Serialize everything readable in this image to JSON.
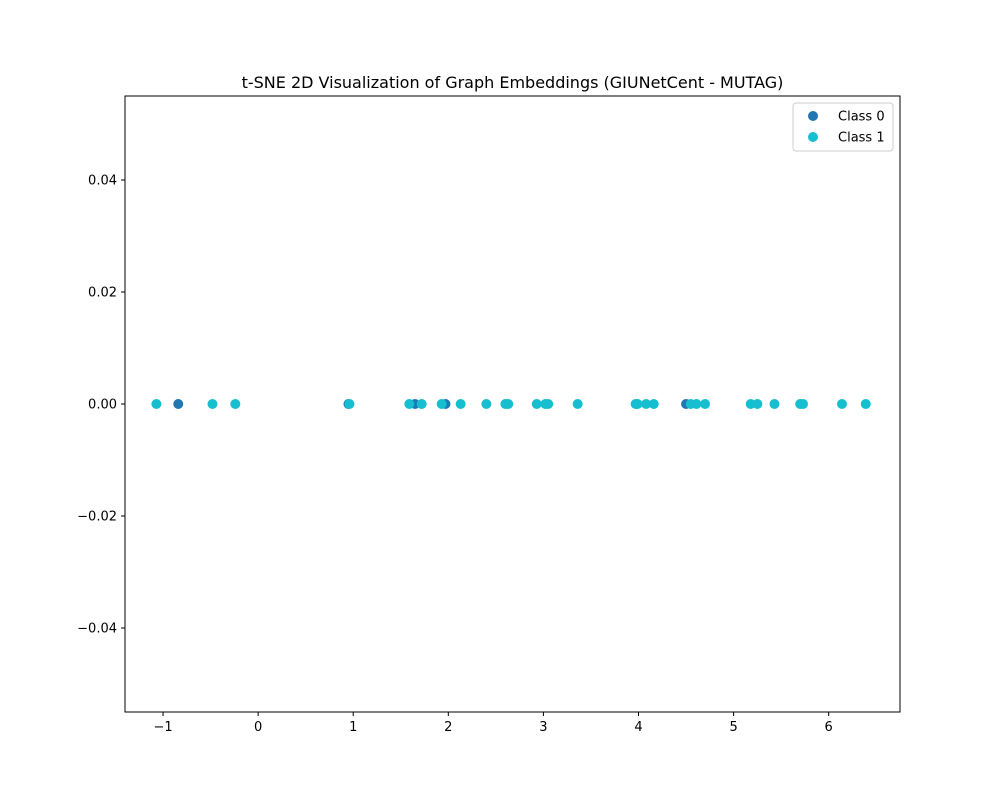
{
  "chart_data": {
    "type": "scatter",
    "title": "t-SNE 2D Visualization of Graph Embeddings (GIUNetCent - MUTAG)",
    "xlabel": "",
    "ylabel": "",
    "xlim": [
      -1.4,
      6.75
    ],
    "ylim": [
      -0.055,
      0.055
    ],
    "x_ticks": [
      -1,
      0,
      1,
      2,
      3,
      4,
      5,
      6
    ],
    "x_tick_labels": [
      "−1",
      "0",
      "1",
      "2",
      "3",
      "4",
      "5",
      "6"
    ],
    "y_ticks": [
      0.04,
      0.02,
      0.0,
      -0.02,
      -0.04
    ],
    "y_tick_labels": [
      "0.04",
      "0.02",
      "0.00",
      "−0.02",
      "−0.04"
    ],
    "grid": false,
    "legend_position": "top-right",
    "series": [
      {
        "name": "Class 0",
        "color": "#1f77b4",
        "points": [
          [
            -0.84,
            0
          ],
          [
            0.95,
            0
          ],
          [
            1.65,
            0
          ],
          [
            1.97,
            0
          ],
          [
            4.5,
            0
          ]
        ]
      },
      {
        "name": "Class 1",
        "color": "#17becf",
        "points": [
          [
            -1.07,
            0
          ],
          [
            -0.48,
            0
          ],
          [
            -0.24,
            0
          ],
          [
            0.96,
            0
          ],
          [
            1.59,
            0
          ],
          [
            1.72,
            0
          ],
          [
            1.93,
            0
          ],
          [
            2.13,
            0
          ],
          [
            2.4,
            0
          ],
          [
            2.6,
            0
          ],
          [
            2.63,
            0
          ],
          [
            2.93,
            0
          ],
          [
            3.02,
            0
          ],
          [
            3.05,
            0
          ],
          [
            3.36,
            0
          ],
          [
            3.97,
            0
          ],
          [
            3.99,
            0
          ],
          [
            4.08,
            0
          ],
          [
            4.16,
            0
          ],
          [
            4.55,
            0
          ],
          [
            4.61,
            0
          ],
          [
            4.7,
            0
          ],
          [
            5.18,
            0
          ],
          [
            5.25,
            0
          ],
          [
            5.43,
            0
          ],
          [
            5.7,
            0
          ],
          [
            5.73,
            0
          ],
          [
            6.14,
            0
          ],
          [
            6.39,
            0
          ]
        ]
      }
    ]
  }
}
